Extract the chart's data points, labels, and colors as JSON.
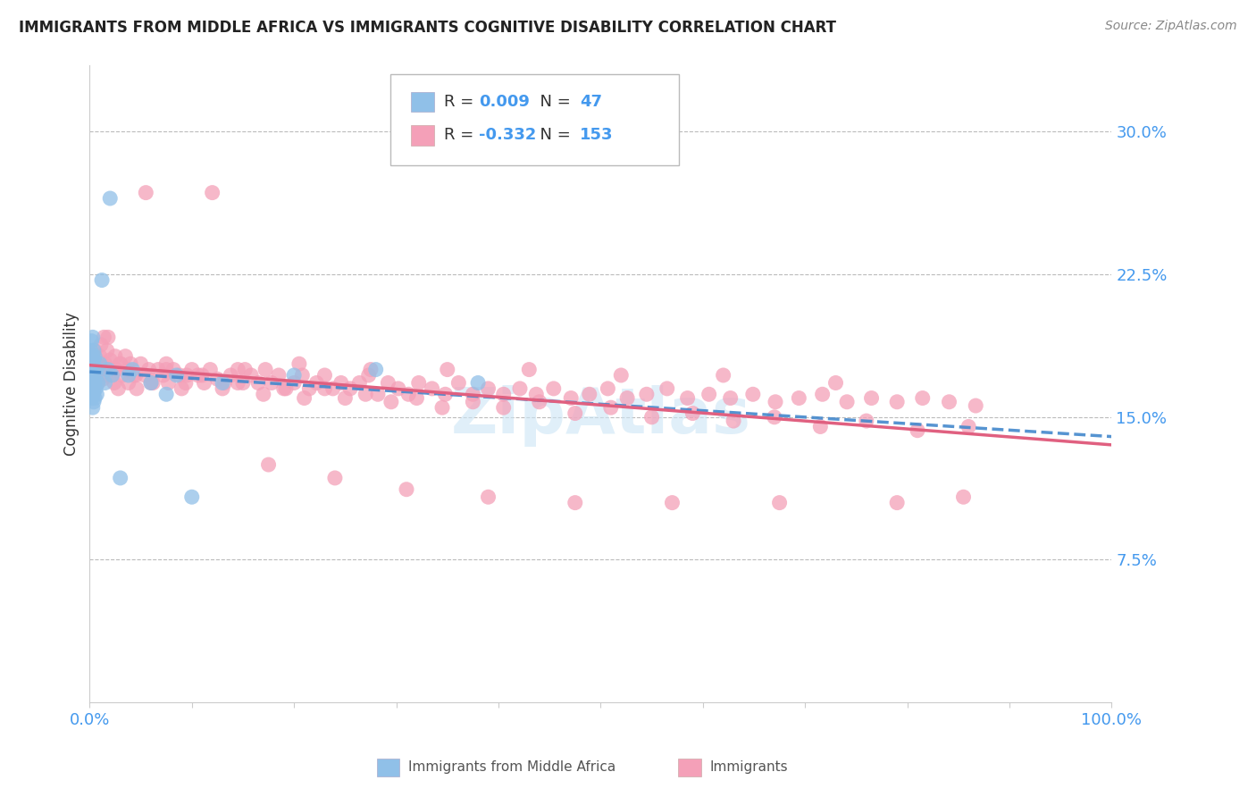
{
  "title": "IMMIGRANTS FROM MIDDLE AFRICA VS IMMIGRANTS COGNITIVE DISABILITY CORRELATION CHART",
  "source": "Source: ZipAtlas.com",
  "ylabel": "Cognitive Disability",
  "ytick_labels": [
    "7.5%",
    "15.0%",
    "22.5%",
    "30.0%"
  ],
  "ytick_values": [
    0.075,
    0.15,
    0.225,
    0.3
  ],
  "xlim": [
    0.0,
    1.0
  ],
  "ylim": [
    0.0,
    0.335
  ],
  "legend_labels": [
    "Immigrants from Middle Africa",
    "Immigrants"
  ],
  "R_blue": 0.009,
  "N_blue": 47,
  "R_pink": -0.332,
  "N_pink": 153,
  "color_blue": "#90c0e8",
  "color_pink": "#f4a0b8",
  "color_line_blue": "#4488cc",
  "color_line_pink": "#e06080",
  "watermark": "ZipAtlas",
  "blue_scatter_x": [
    0.001,
    0.001,
    0.001,
    0.002,
    0.002,
    0.002,
    0.002,
    0.002,
    0.003,
    0.003,
    0.003,
    0.003,
    0.003,
    0.003,
    0.003,
    0.004,
    0.004,
    0.004,
    0.004,
    0.004,
    0.004,
    0.005,
    0.005,
    0.005,
    0.005,
    0.006,
    0.006,
    0.007,
    0.007,
    0.008,
    0.01,
    0.012,
    0.015,
    0.018,
    0.02,
    0.022,
    0.03,
    0.038,
    0.042,
    0.06,
    0.075,
    0.085,
    0.1,
    0.13,
    0.2,
    0.28,
    0.38
  ],
  "blue_scatter_y": [
    0.175,
    0.178,
    0.185,
    0.16,
    0.168,
    0.172,
    0.18,
    0.19,
    0.155,
    0.162,
    0.168,
    0.174,
    0.178,
    0.182,
    0.192,
    0.158,
    0.163,
    0.17,
    0.175,
    0.18,
    0.185,
    0.16,
    0.168,
    0.175,
    0.182,
    0.165,
    0.172,
    0.162,
    0.175,
    0.168,
    0.178,
    0.222,
    0.168,
    0.175,
    0.265,
    0.172,
    0.118,
    0.172,
    0.175,
    0.168,
    0.162,
    0.172,
    0.108,
    0.168,
    0.172,
    0.175,
    0.168
  ],
  "pink_scatter_x": [
    0.001,
    0.002,
    0.003,
    0.004,
    0.005,
    0.005,
    0.006,
    0.007,
    0.008,
    0.009,
    0.01,
    0.011,
    0.012,
    0.013,
    0.014,
    0.015,
    0.016,
    0.017,
    0.018,
    0.019,
    0.02,
    0.022,
    0.024,
    0.026,
    0.028,
    0.03,
    0.032,
    0.035,
    0.038,
    0.04,
    0.043,
    0.046,
    0.05,
    0.054,
    0.058,
    0.062,
    0.067,
    0.072,
    0.077,
    0.082,
    0.088,
    0.094,
    0.1,
    0.106,
    0.112,
    0.118,
    0.125,
    0.132,
    0.138,
    0.145,
    0.152,
    0.158,
    0.165,
    0.172,
    0.178,
    0.185,
    0.192,
    0.2,
    0.208,
    0.215,
    0.222,
    0.23,
    0.238,
    0.246,
    0.255,
    0.264,
    0.273,
    0.282,
    0.292,
    0.302,
    0.312,
    0.322,
    0.335,
    0.348,
    0.361,
    0.375,
    0.39,
    0.405,
    0.421,
    0.437,
    0.454,
    0.471,
    0.489,
    0.507,
    0.526,
    0.545,
    0.565,
    0.585,
    0.606,
    0.627,
    0.649,
    0.671,
    0.694,
    0.717,
    0.741,
    0.765,
    0.79,
    0.815,
    0.841,
    0.867,
    0.03,
    0.045,
    0.06,
    0.075,
    0.09,
    0.11,
    0.13,
    0.15,
    0.17,
    0.19,
    0.21,
    0.23,
    0.25,
    0.27,
    0.295,
    0.32,
    0.345,
    0.375,
    0.405,
    0.44,
    0.475,
    0.51,
    0.55,
    0.59,
    0.63,
    0.67,
    0.715,
    0.76,
    0.81,
    0.86,
    0.025,
    0.038,
    0.055,
    0.075,
    0.095,
    0.12,
    0.145,
    0.175,
    0.205,
    0.24,
    0.275,
    0.31,
    0.35,
    0.39,
    0.43,
    0.475,
    0.52,
    0.57,
    0.62,
    0.675,
    0.73,
    0.79,
    0.855
  ],
  "pink_scatter_y": [
    0.168,
    0.175,
    0.178,
    0.182,
    0.172,
    0.185,
    0.175,
    0.18,
    0.168,
    0.175,
    0.182,
    0.188,
    0.178,
    0.17,
    0.192,
    0.178,
    0.172,
    0.185,
    0.192,
    0.175,
    0.18,
    0.172,
    0.168,
    0.175,
    0.165,
    0.178,
    0.172,
    0.182,
    0.168,
    0.178,
    0.172,
    0.165,
    0.178,
    0.172,
    0.175,
    0.168,
    0.175,
    0.172,
    0.168,
    0.175,
    0.172,
    0.168,
    0.175,
    0.172,
    0.168,
    0.175,
    0.17,
    0.168,
    0.172,
    0.168,
    0.175,
    0.172,
    0.168,
    0.175,
    0.168,
    0.172,
    0.165,
    0.168,
    0.172,
    0.165,
    0.168,
    0.172,
    0.165,
    0.168,
    0.165,
    0.168,
    0.172,
    0.162,
    0.168,
    0.165,
    0.162,
    0.168,
    0.165,
    0.162,
    0.168,
    0.162,
    0.165,
    0.162,
    0.165,
    0.162,
    0.165,
    0.16,
    0.162,
    0.165,
    0.16,
    0.162,
    0.165,
    0.16,
    0.162,
    0.16,
    0.162,
    0.158,
    0.16,
    0.162,
    0.158,
    0.16,
    0.158,
    0.16,
    0.158,
    0.156,
    0.178,
    0.172,
    0.168,
    0.175,
    0.165,
    0.172,
    0.165,
    0.168,
    0.162,
    0.165,
    0.16,
    0.165,
    0.16,
    0.162,
    0.158,
    0.16,
    0.155,
    0.158,
    0.155,
    0.158,
    0.152,
    0.155,
    0.15,
    0.152,
    0.148,
    0.15,
    0.145,
    0.148,
    0.143,
    0.145,
    0.182,
    0.175,
    0.268,
    0.178,
    0.172,
    0.268,
    0.175,
    0.125,
    0.178,
    0.118,
    0.175,
    0.112,
    0.175,
    0.108,
    0.175,
    0.105,
    0.172,
    0.105,
    0.172,
    0.105,
    0.168,
    0.105,
    0.108
  ]
}
